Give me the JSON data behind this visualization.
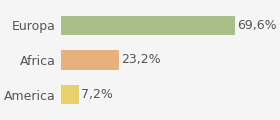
{
  "categories": [
    "America",
    "Africa",
    "Europa"
  ],
  "values": [
    7.2,
    23.2,
    69.6
  ],
  "labels": [
    "7,2%",
    "23,2%",
    "69,6%"
  ],
  "bar_colors": [
    "#e8d06a",
    "#e8b07a",
    "#a8bf8a"
  ],
  "background_color": "#f5f5f5",
  "xlim": [
    0,
    85
  ],
  "label_fontsize": 9,
  "tick_fontsize": 9
}
